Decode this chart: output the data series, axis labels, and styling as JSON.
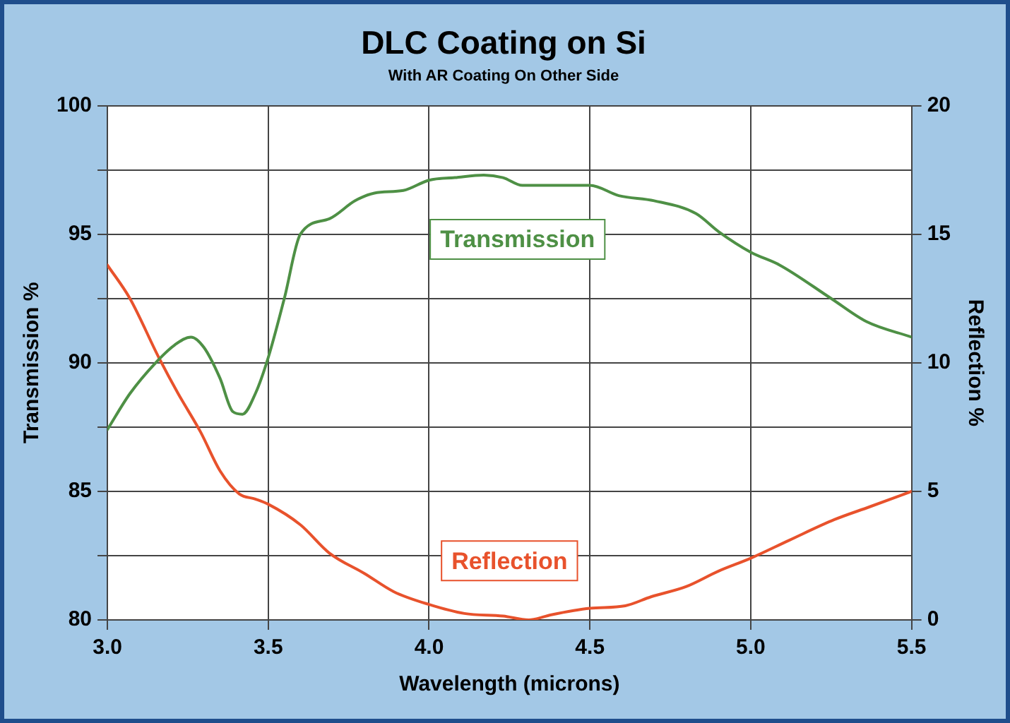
{
  "chart_data": {
    "type": "line",
    "title": "DLC Coating on Si",
    "subtitle": "With AR Coating On Other Side",
    "xlabel": "Wavelength (microns)",
    "ylabel": "Transmission %",
    "y2label": "Reflection %",
    "xlim": [
      3.0,
      5.5
    ],
    "xticks": [
      {
        "value": 3,
        "label": "3.0"
      },
      3.5,
      {
        "value": 4,
        "label": "4.0"
      },
      4.5,
      {
        "value": 5,
        "label": "5.0"
      },
      5.5
    ],
    "ylim": [
      80,
      100
    ],
    "yticks": [
      80,
      {
        "value": 82.5,
        "label": null
      },
      85,
      {
        "value": 87.5,
        "label": null
      },
      90,
      {
        "value": 92.5,
        "label": null
      },
      95,
      {
        "value": 97.5,
        "label": null
      },
      100
    ],
    "y2lim": [
      0,
      20
    ],
    "y2ticks": [
      0,
      5,
      10,
      15,
      20
    ],
    "grid": true,
    "legend": false,
    "marker": "none",
    "line_style": "solid",
    "series": [
      {
        "name": "Transmission",
        "color": "#4e9045",
        "x": [
          3.0,
          3.07,
          3.15,
          3.21,
          3.26,
          3.3,
          3.35,
          3.39,
          3.42,
          3.46,
          3.5,
          3.55,
          3.6,
          3.69,
          3.77,
          3.83,
          3.92,
          4.0,
          4.08,
          4.17,
          4.23,
          4.29,
          4.38,
          4.5,
          4.59,
          4.7,
          4.83,
          4.9,
          5.0,
          5.09,
          5.25,
          5.36,
          5.5
        ],
        "values": [
          87.4,
          88.8,
          90.0,
          90.7,
          91.0,
          90.6,
          89.4,
          88.1,
          88.0,
          88.8,
          90.2,
          92.5,
          95.0,
          95.6,
          96.3,
          96.6,
          96.7,
          97.1,
          97.2,
          97.3,
          97.2,
          96.9,
          96.9,
          96.9,
          96.5,
          96.3,
          95.8,
          95.1,
          94.3,
          93.8,
          92.5,
          91.6,
          91.0
        ]
      },
      {
        "name": "Reflection",
        "color": "#e8522c",
        "axis": "y2",
        "x": [
          3.0,
          3.07,
          3.16,
          3.22,
          3.29,
          3.35,
          3.41,
          3.46,
          3.5,
          3.6,
          3.69,
          3.8,
          3.89,
          4.0,
          4.11,
          4.23,
          4.31,
          4.38,
          4.5,
          4.61,
          4.69,
          4.8,
          4.9,
          5.0,
          5.12,
          5.26,
          5.37,
          5.5
        ],
        "values": [
          13.8,
          12.5,
          10.2,
          8.8,
          7.3,
          5.8,
          4.9,
          4.7,
          4.5,
          3.7,
          2.6,
          1.8,
          1.1,
          0.6,
          0.25,
          0.15,
          0.0,
          0.2,
          0.45,
          0.55,
          0.9,
          1.3,
          1.9,
          2.4,
          3.1,
          3.9,
          4.4,
          5.0
        ]
      }
    ]
  }
}
